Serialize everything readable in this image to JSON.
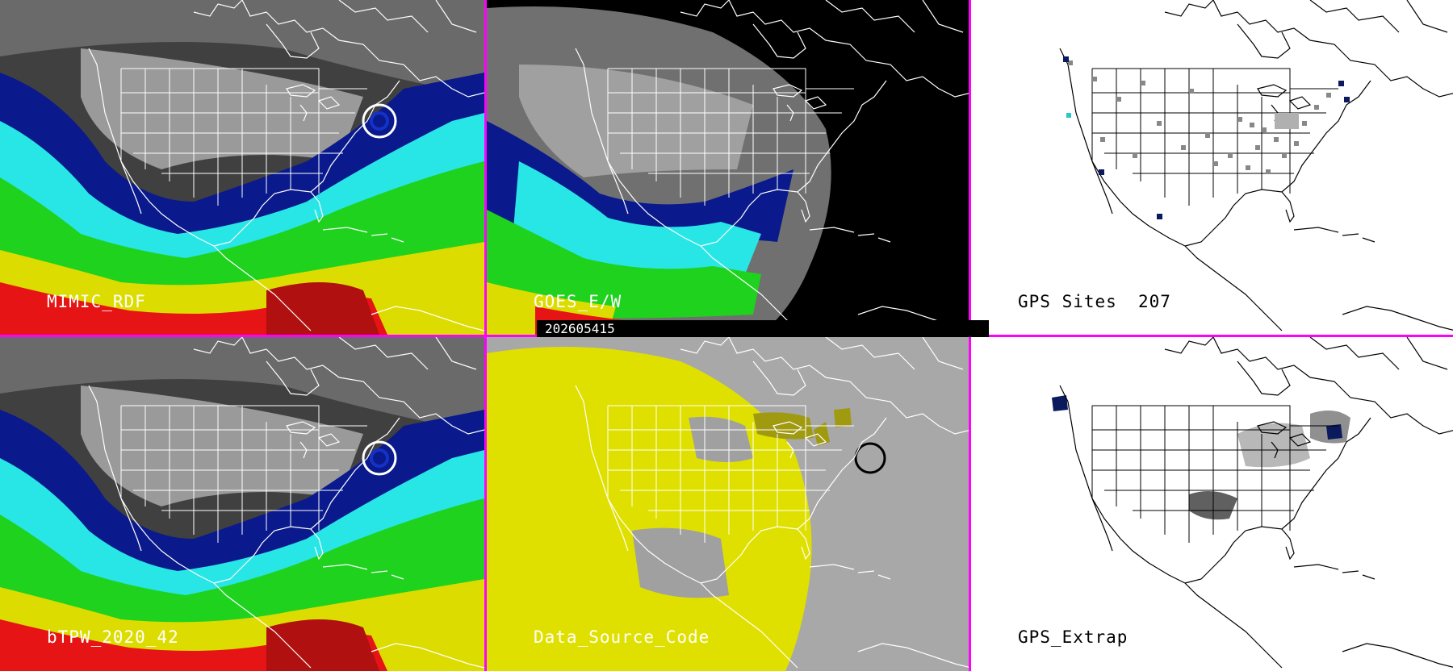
{
  "panels": [
    {
      "id": "mimic",
      "label": "MIMIC_RDF"
    },
    {
      "id": "goes",
      "label": "GOES_E/W"
    },
    {
      "id": "gps",
      "label": "GPS Sites",
      "value": "207"
    },
    {
      "id": "btpw",
      "label": "bTPW_2020_42"
    },
    {
      "id": "dsc",
      "label": "Data_Source_Code"
    },
    {
      "id": "gpsx",
      "label": "GPS_Extrap"
    }
  ],
  "timestamp": "202605415",
  "colors": {
    "divider": "#ff00ff",
    "precip_dark": "#000c8c",
    "precip_blue": "#1432c8",
    "precip_cyan": "#28e6e6",
    "precip_green": "#1ed21e",
    "precip_yellow": "#dcdc00",
    "precip_red": "#e61414",
    "dsc_yellow": "#e0e000",
    "dsc_gray": "#a8a8a8",
    "dsc_olive": "#a09a10"
  }
}
